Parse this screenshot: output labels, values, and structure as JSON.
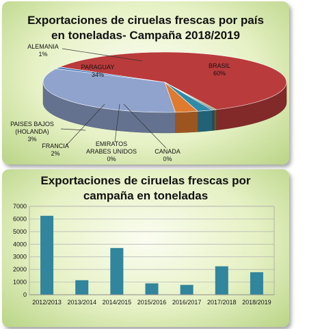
{
  "charts": {
    "pie_title_line1": "Exportaciones de ciruelas frescas por país",
    "pie_title_line2": "en toneladas- Campaña 2018/2019",
    "bar_title_line1": "Exportaciones de ciruelas frescas por",
    "bar_title_line2": "campaña en toneladas"
  },
  "chart_data": [
    {
      "type": "pie",
      "title": "Exportaciones de ciruelas frescas por país en toneladas- Campaña 2018/2019",
      "slices": [
        {
          "label_lines": [
            "BRASIL",
            "60%"
          ],
          "value": 60,
          "color": "#b93b3b"
        },
        {
          "label_lines": [
            "CANADA",
            "0%"
          ],
          "value": 0.3,
          "color": "#6f8c37"
        },
        {
          "label_lines": [
            "EMIRATOS",
            "ARABES UNIDOS",
            "0%"
          ],
          "value": 0.3,
          "color": "#4a5f8e"
        },
        {
          "label_lines": [
            "FRANCIA",
            "2%"
          ],
          "value": 2,
          "color": "#2f8ca8"
        },
        {
          "label_lines": [
            "PAISES BAJOS",
            "(HOLANDA)",
            "3%"
          ],
          "value": 3,
          "color": "#e07a2e"
        },
        {
          "label_lines": [
            "PARAGUAY",
            "34%"
          ],
          "value": 34,
          "color": "#8fa3cc"
        },
        {
          "label_lines": [
            "ALEMANIA",
            "1%"
          ],
          "value": 1,
          "color": "#4f7ec0"
        }
      ]
    },
    {
      "type": "bar",
      "title": "Exportaciones de ciruelas frescas por campaña en toneladas",
      "categories": [
        "2012/2013",
        "2013/2014",
        "2014/2015",
        "2015/2016",
        "2016/2017",
        "2017/2018",
        "2018/2019"
      ],
      "values": [
        6250,
        1150,
        3700,
        900,
        780,
        2250,
        1780
      ],
      "ylim": [
        0,
        7000
      ],
      "yticks": [
        0,
        1000,
        2000,
        3000,
        4000,
        5000,
        6000,
        7000
      ],
      "grid": true,
      "bar_color": "#31859c"
    }
  ]
}
